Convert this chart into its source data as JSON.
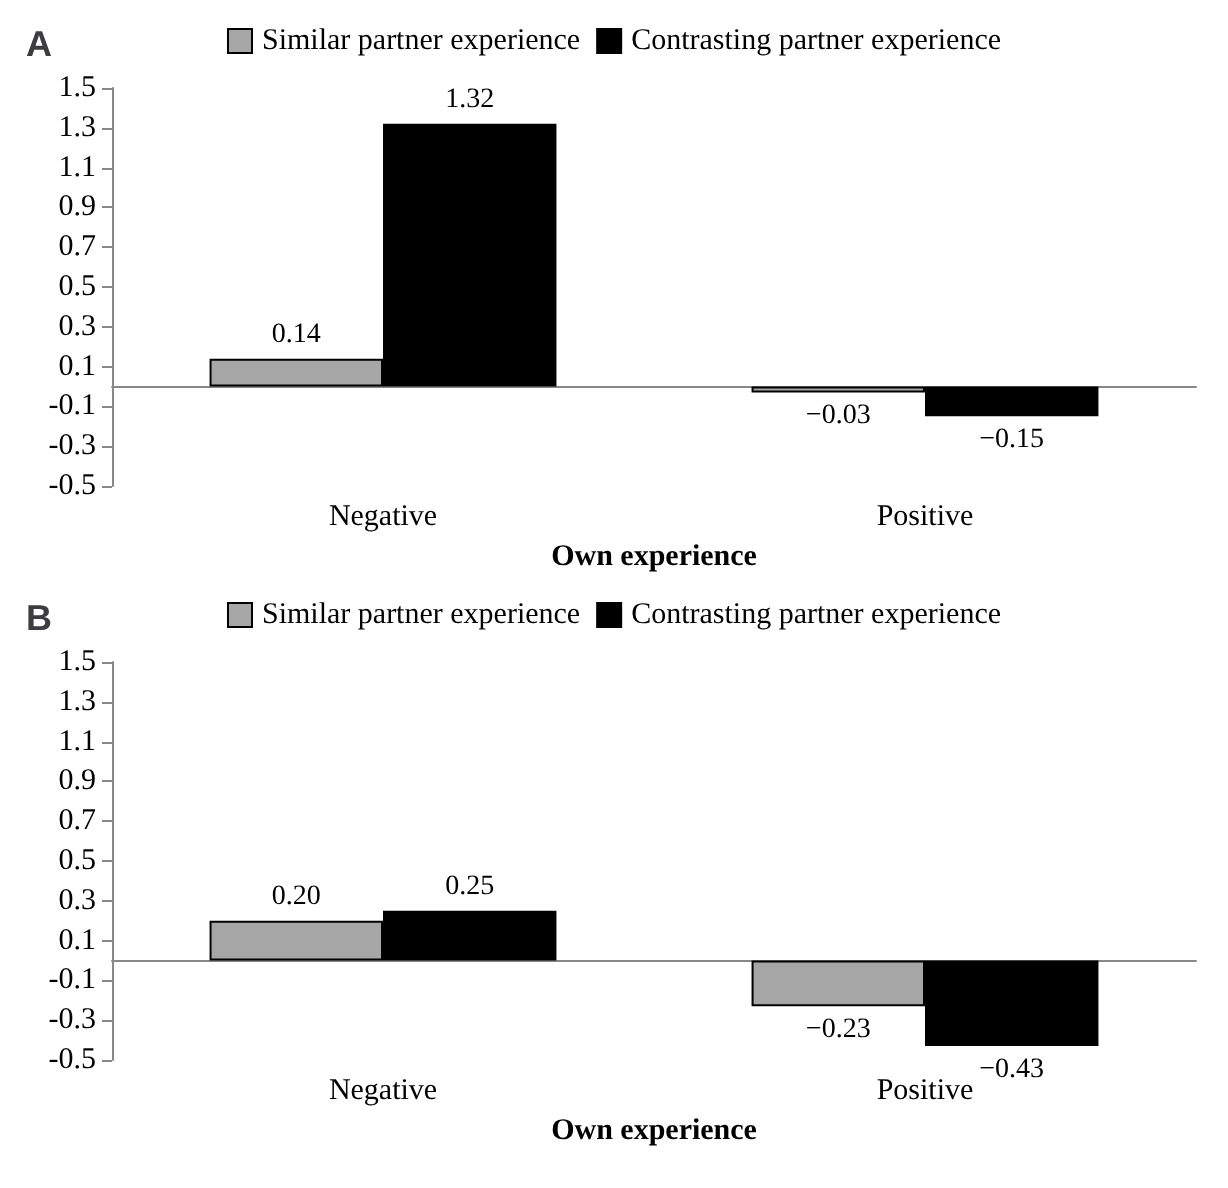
{
  "chart_data": [
    {
      "type": "bar",
      "title": "A",
      "xlabel": "Own experience",
      "categories": [
        "Negative",
        "Positive"
      ],
      "series": [
        {
          "name": "Similar partner experience",
          "color": "#a6a6a6",
          "values": [
            0.14,
            -0.03
          ],
          "value_labels": [
            "0.14",
            "−0.03"
          ]
        },
        {
          "name": "Contrasting partner experience",
          "color": "#000000",
          "values": [
            1.32,
            -0.15
          ],
          "value_labels": [
            "1.32",
            "−0.15"
          ]
        }
      ],
      "ylim": [
        -0.5,
        1.5
      ],
      "yticks": [
        -0.5,
        -0.3,
        -0.1,
        0.1,
        0.3,
        0.5,
        0.7,
        0.9,
        1.1,
        1.3,
        1.5
      ],
      "grid": false,
      "legend": "top"
    },
    {
      "type": "bar",
      "title": "B",
      "xlabel": "Own experience",
      "categories": [
        "Negative",
        "Positive"
      ],
      "series": [
        {
          "name": "Similar partner experience",
          "color": "#a6a6a6",
          "values": [
            0.2,
            -0.23
          ],
          "value_labels": [
            "0.20",
            "−0.23"
          ]
        },
        {
          "name": "Contrasting partner experience",
          "color": "#000000",
          "values": [
            0.25,
            -0.43
          ],
          "value_labels": [
            "0.25",
            "−0.43"
          ]
        }
      ],
      "ylim": [
        -0.5,
        1.5
      ],
      "yticks": [
        -0.5,
        -0.3,
        -0.1,
        0.1,
        0.3,
        0.5,
        0.7,
        0.9,
        1.1,
        1.3,
        1.5
      ],
      "grid": false,
      "legend": "top"
    }
  ]
}
